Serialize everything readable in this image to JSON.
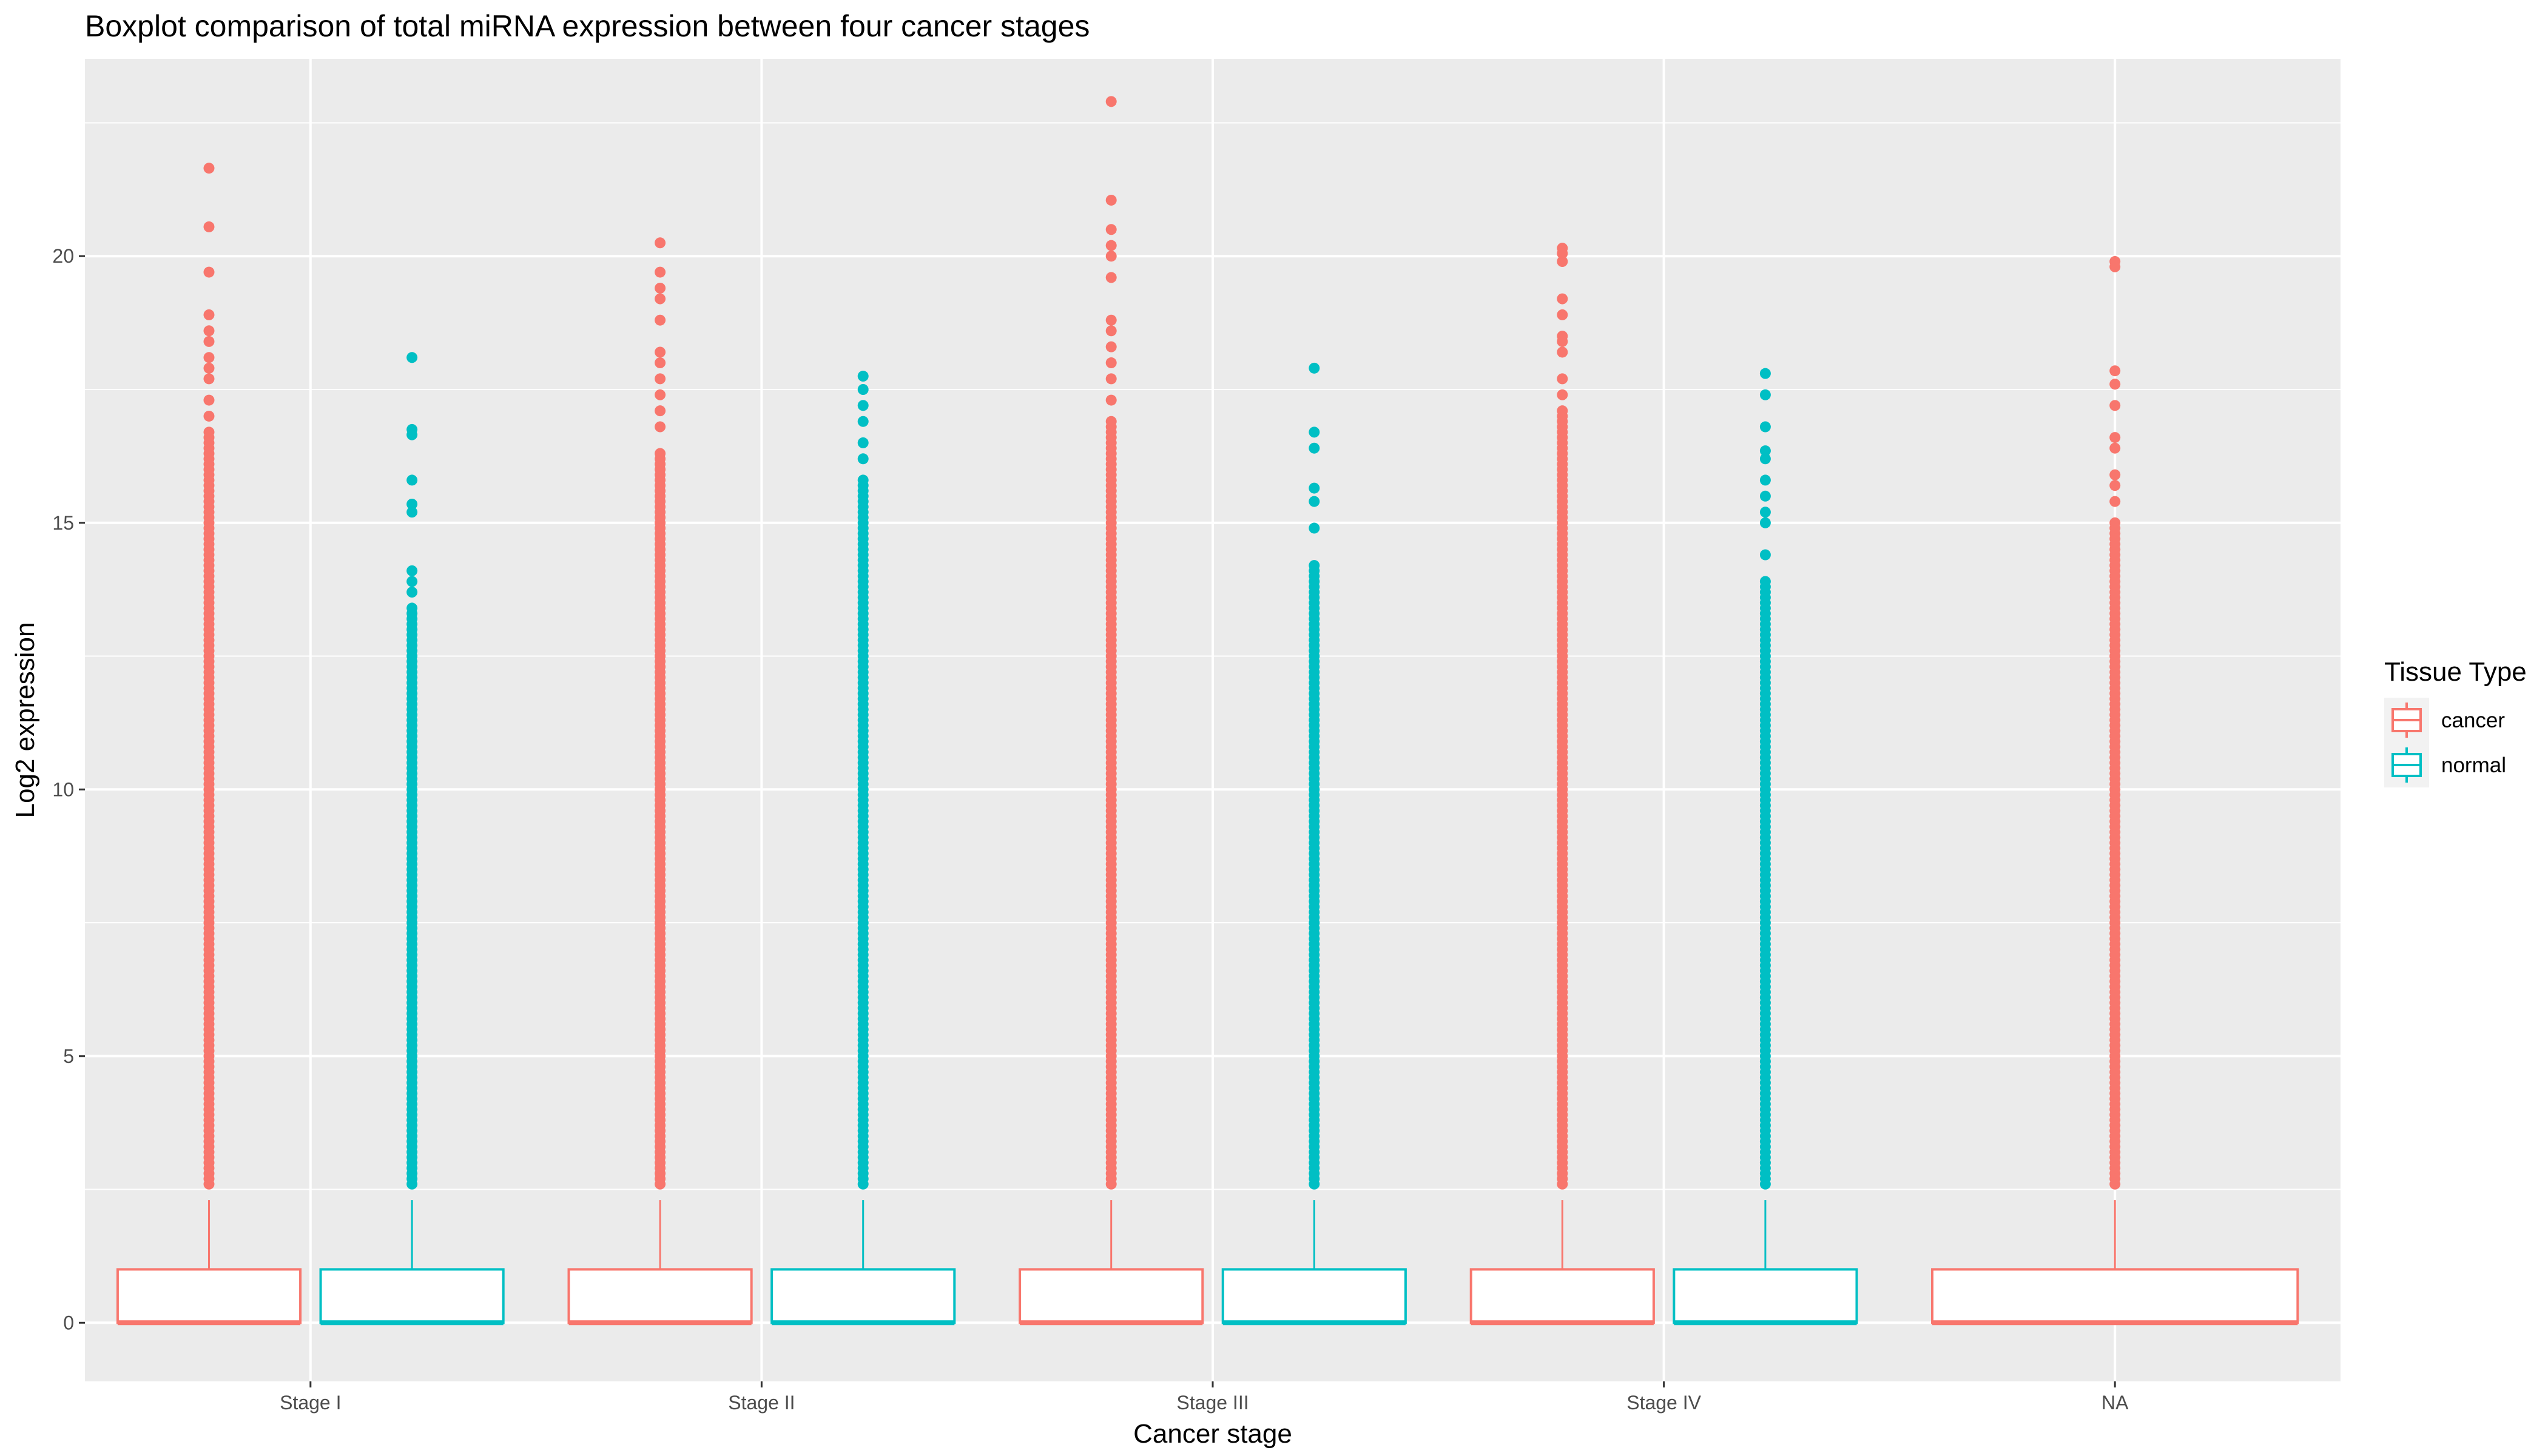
{
  "chart_data": {
    "type": "boxplot",
    "title": "Boxplot comparison of total miRNA expression between four cancer stages",
    "xlabel": "Cancer stage",
    "ylabel": "Log2 expression",
    "categories": [
      "Stage I",
      "Stage II",
      "Stage III",
      "Stage IV",
      "NA"
    ],
    "ylim": [
      -1.1,
      23.7
    ],
    "yticks": [
      0,
      5,
      10,
      15,
      20
    ],
    "grid": true,
    "legend": {
      "title": "Tissue Type",
      "position": "right",
      "entries": [
        {
          "label": "cancer",
          "color": "#F8766D"
        },
        {
          "label": "normal",
          "color": "#00BFC4"
        }
      ]
    },
    "colors": {
      "cancer": "#F8766D",
      "normal": "#00BFC4",
      "panel": "#EBEBEB",
      "grid": "#FFFFFF"
    },
    "series": [
      {
        "name": "cancer",
        "boxes": [
          {
            "category": "Stage I",
            "min": 0,
            "q1": 0,
            "median": 0,
            "q3": 1,
            "whisker_high": 2.3,
            "outlier_min": 2.6,
            "outlier_max_dense": 16.7,
            "outliers_sparse": [
              17.0,
              17.3,
              17.7,
              17.9,
              18.1,
              18.4,
              18.6,
              18.9,
              19.7,
              20.55,
              21.65
            ]
          },
          {
            "category": "Stage II",
            "min": 0,
            "q1": 0,
            "median": 0,
            "q3": 1,
            "whisker_high": 2.3,
            "outlier_min": 2.6,
            "outlier_max_dense": 16.3,
            "outliers_sparse": [
              16.8,
              17.1,
              17.4,
              17.7,
              18.0,
              18.2,
              18.8,
              19.2,
              19.4,
              19.7,
              20.25
            ]
          },
          {
            "category": "Stage III",
            "min": 0,
            "q1": 0,
            "median": 0,
            "q3": 1,
            "whisker_high": 2.3,
            "outlier_min": 2.6,
            "outlier_max_dense": 16.9,
            "outliers_sparse": [
              17.3,
              17.7,
              18.0,
              18.3,
              18.6,
              18.8,
              19.6,
              20.0,
              20.2,
              20.5,
              21.05,
              22.9
            ]
          },
          {
            "category": "Stage IV",
            "min": 0,
            "q1": 0,
            "median": 0,
            "q3": 1,
            "whisker_high": 2.3,
            "outlier_min": 2.6,
            "outlier_max_dense": 17.1,
            "outliers_sparse": [
              17.4,
              17.7,
              18.2,
              18.4,
              18.5,
              18.9,
              19.2,
              19.9,
              20.05,
              20.15
            ]
          },
          {
            "category": "NA",
            "min": 0,
            "q1": 0,
            "median": 0,
            "q3": 1,
            "whisker_high": 2.3,
            "outlier_min": 2.6,
            "outlier_max_dense": 15.0,
            "outliers_sparse": [
              15.4,
              15.7,
              15.9,
              16.4,
              16.6,
              17.2,
              17.6,
              17.85,
              19.8,
              19.9
            ]
          }
        ]
      },
      {
        "name": "normal",
        "boxes": [
          {
            "category": "Stage I",
            "min": 0,
            "q1": 0,
            "median": 0,
            "q3": 1,
            "whisker_high": 2.3,
            "outlier_min": 2.6,
            "outlier_max_dense": 13.4,
            "outliers_sparse": [
              13.7,
              13.9,
              14.1,
              15.2,
              15.35,
              15.8,
              16.65,
              16.75,
              18.1
            ]
          },
          {
            "category": "Stage II",
            "min": 0,
            "q1": 0,
            "median": 0,
            "q3": 1,
            "whisker_high": 2.3,
            "outlier_min": 2.6,
            "outlier_max_dense": 15.8,
            "outliers_sparse": [
              16.2,
              16.5,
              16.9,
              17.2,
              17.5,
              17.75
            ]
          },
          {
            "category": "Stage III",
            "min": 0,
            "q1": 0,
            "median": 0,
            "q3": 1,
            "whisker_high": 2.3,
            "outlier_min": 2.6,
            "outlier_max_dense": 14.2,
            "outliers_sparse": [
              14.9,
              15.4,
              15.65,
              16.4,
              16.7,
              17.9
            ]
          },
          {
            "category": "Stage IV",
            "min": 0,
            "q1": 0,
            "median": 0,
            "q3": 1,
            "whisker_high": 2.3,
            "outlier_min": 2.6,
            "outlier_max_dense": 13.9,
            "outliers_sparse": [
              14.4,
              15.0,
              15.2,
              15.5,
              15.8,
              16.2,
              16.35,
              16.8,
              17.4,
              17.8
            ]
          }
        ]
      }
    ]
  }
}
